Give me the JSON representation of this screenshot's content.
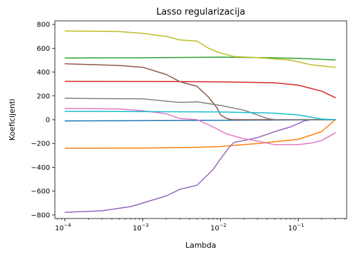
{
  "colors": {
    "series": [
      "#1f77b4",
      "#ff7f0e",
      "#2ca02c",
      "#d62728",
      "#9467bd",
      "#8c564b",
      "#e377c2",
      "#7f7f7f",
      "#bcbd22",
      "#17becf"
    ],
    "axis": "#000000",
    "background": "#ffffff"
  },
  "chart_data": {
    "type": "line",
    "title": "Lasso regularizacija",
    "xlabel": "Lambda",
    "ylabel": "Koeficijenti",
    "xscale": "log",
    "xlim": [
      7.4e-05,
      0.42
    ],
    "ylim": [
      -830,
      830
    ],
    "grid": false,
    "legend": "none",
    "x_ticks": [
      {
        "value": 0.0001,
        "base": "10",
        "exp": "−4"
      },
      {
        "value": 0.001,
        "base": "10",
        "exp": "−3"
      },
      {
        "value": 0.01,
        "base": "10",
        "exp": "−2"
      },
      {
        "value": 0.1,
        "base": "10",
        "exp": "−1"
      }
    ],
    "y_ticks": [
      {
        "value": 800,
        "label": "800"
      },
      {
        "value": 600,
        "label": "600"
      },
      {
        "value": 400,
        "label": "400"
      },
      {
        "value": 200,
        "label": "200"
      },
      {
        "value": 0,
        "label": "0"
      },
      {
        "value": -200,
        "label": "−200"
      },
      {
        "value": -400,
        "label": "−400"
      },
      {
        "value": -600,
        "label": "−600"
      },
      {
        "value": -800,
        "label": "−800"
      }
    ],
    "series": [
      {
        "color": "#1f77b4",
        "points": [
          [
            0.0001,
            -10
          ],
          [
            0.001,
            -8
          ],
          [
            0.01,
            -5
          ],
          [
            0.1,
            -2
          ],
          [
            0.3,
            0
          ]
        ]
      },
      {
        "color": "#ff7f0e",
        "points": [
          [
            0.0001,
            -240
          ],
          [
            0.001,
            -238
          ],
          [
            0.005,
            -232
          ],
          [
            0.01,
            -225
          ],
          [
            0.03,
            -200
          ],
          [
            0.1,
            -165
          ],
          [
            0.2,
            -100
          ],
          [
            0.3,
            0
          ]
        ]
      },
      {
        "color": "#2ca02c",
        "points": [
          [
            0.0001,
            518
          ],
          [
            0.001,
            520
          ],
          [
            0.01,
            525
          ],
          [
            0.03,
            522
          ],
          [
            0.1,
            515
          ],
          [
            0.3,
            502
          ]
        ]
      },
      {
        "color": "#d62728",
        "points": [
          [
            0.0001,
            322
          ],
          [
            0.001,
            321
          ],
          [
            0.01,
            318
          ],
          [
            0.05,
            310
          ],
          [
            0.1,
            290
          ],
          [
            0.2,
            240
          ],
          [
            0.3,
            185
          ]
        ]
      },
      {
        "color": "#9467bd",
        "points": [
          [
            0.0001,
            -778
          ],
          [
            0.0003,
            -765
          ],
          [
            0.0007,
            -730
          ],
          [
            0.001,
            -700
          ],
          [
            0.002,
            -640
          ],
          [
            0.003,
            -585
          ],
          [
            0.005,
            -550
          ],
          [
            0.008,
            -420
          ],
          [
            0.01,
            -330
          ],
          [
            0.013,
            -230
          ],
          [
            0.015,
            -190
          ],
          [
            0.02,
            -175
          ],
          [
            0.03,
            -150
          ],
          [
            0.05,
            -100
          ],
          [
            0.08,
            -60
          ],
          [
            0.12,
            -10
          ],
          [
            0.15,
            0
          ],
          [
            0.3,
            0
          ]
        ]
      },
      {
        "color": "#8c564b",
        "points": [
          [
            0.0001,
            470
          ],
          [
            0.0005,
            455
          ],
          [
            0.001,
            440
          ],
          [
            0.002,
            380
          ],
          [
            0.003,
            320
          ],
          [
            0.005,
            280
          ],
          [
            0.007,
            190
          ],
          [
            0.009,
            100
          ],
          [
            0.01,
            40
          ],
          [
            0.012,
            10
          ],
          [
            0.014,
            0
          ],
          [
            0.3,
            0
          ]
        ]
      },
      {
        "color": "#e377c2",
        "points": [
          [
            0.0001,
            95
          ],
          [
            0.0005,
            90
          ],
          [
            0.001,
            75
          ],
          [
            0.002,
            50
          ],
          [
            0.003,
            10
          ],
          [
            0.005,
            0
          ],
          [
            0.008,
            -60
          ],
          [
            0.012,
            -120
          ],
          [
            0.02,
            -160
          ],
          [
            0.03,
            -180
          ],
          [
            0.05,
            -210
          ],
          [
            0.1,
            -210
          ],
          [
            0.15,
            -195
          ],
          [
            0.2,
            -175
          ],
          [
            0.3,
            -110
          ]
        ]
      },
      {
        "color": "#7f7f7f",
        "points": [
          [
            0.0001,
            180
          ],
          [
            0.001,
            175
          ],
          [
            0.003,
            145
          ],
          [
            0.005,
            150
          ],
          [
            0.01,
            120
          ],
          [
            0.02,
            80
          ],
          [
            0.03,
            40
          ],
          [
            0.04,
            10
          ],
          [
            0.05,
            0
          ],
          [
            0.3,
            0
          ]
        ]
      },
      {
        "color": "#bcbd22",
        "points": [
          [
            0.0001,
            745
          ],
          [
            0.0005,
            740
          ],
          [
            0.001,
            725
          ],
          [
            0.002,
            700
          ],
          [
            0.003,
            670
          ],
          [
            0.005,
            660
          ],
          [
            0.007,
            600
          ],
          [
            0.01,
            560
          ],
          [
            0.015,
            530
          ],
          [
            0.03,
            522
          ],
          [
            0.08,
            500
          ],
          [
            0.15,
            460
          ],
          [
            0.3,
            440
          ]
        ]
      },
      {
        "color": "#17becf",
        "points": [
          [
            0.0001,
            70
          ],
          [
            0.001,
            68
          ],
          [
            0.01,
            65
          ],
          [
            0.05,
            55
          ],
          [
            0.1,
            40
          ],
          [
            0.15,
            20
          ],
          [
            0.2,
            5
          ],
          [
            0.3,
            0
          ]
        ]
      }
    ]
  }
}
